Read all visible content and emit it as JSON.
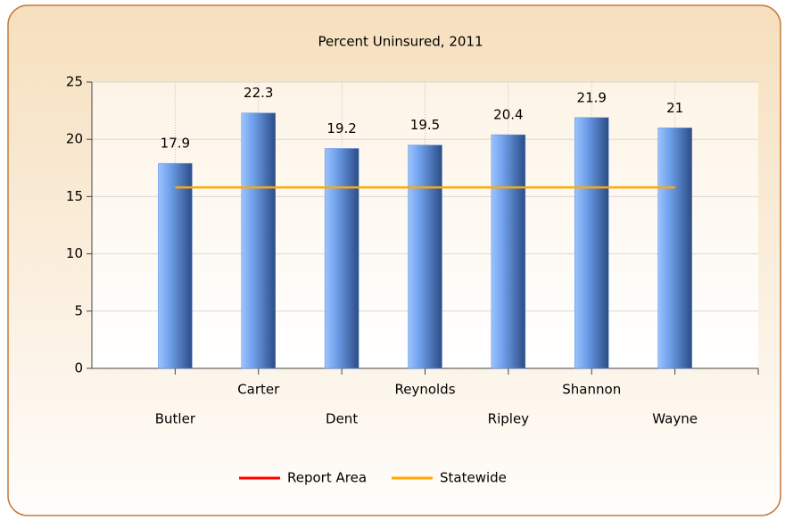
{
  "chart_data": {
    "type": "bar",
    "title": "Percent Uninsured, 2011",
    "categories": [
      "Butler",
      "Carter",
      "Dent",
      "Reynolds",
      "Ripley",
      "Shannon",
      "Wayne"
    ],
    "values": [
      17.9,
      22.3,
      19.2,
      19.5,
      20.4,
      21.9,
      21
    ],
    "color": "#5b8fe0",
    "series": [
      {
        "name": "Report Area",
        "color": "#ff0000"
      },
      {
        "name": "Statewide",
        "color": "#ffaa00",
        "values": [
          15.8,
          15.8,
          15.8,
          15.8,
          15.8,
          15.8,
          15.8
        ]
      }
    ],
    "ylim": [
      0,
      25
    ],
    "yticks": [
      0,
      5,
      10,
      15,
      20,
      25
    ],
    "grid": true
  }
}
